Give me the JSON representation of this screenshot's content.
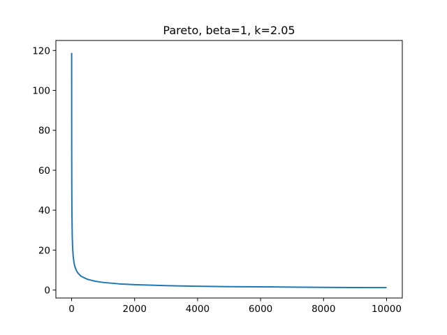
{
  "chart_data": {
    "type": "line",
    "title": "Pareto, beta=1, k=2.05",
    "xlabel": "",
    "ylabel": "",
    "xlim": [
      -500,
      10500
    ],
    "ylim": [
      -4,
      125
    ],
    "xticks": [
      0,
      2000,
      4000,
      6000,
      8000,
      10000
    ],
    "yticks": [
      0,
      20,
      40,
      60,
      80,
      100,
      120
    ],
    "grid": false,
    "legend": "none",
    "series": [
      {
        "color": "#1f77b4",
        "x": [
          1,
          2,
          3,
          5,
          10,
          20,
          30,
          50,
          75,
          100,
          150,
          200,
          300,
          500,
          750,
          1000,
          1500,
          2000,
          3000,
          4000,
          5000,
          6000,
          7000,
          8000,
          9000,
          10000
        ],
        "y": [
          118.8,
          84.2,
          68.8,
          53.3,
          37.7,
          26.7,
          21.8,
          16.9,
          13.8,
          11.9,
          9.8,
          8.5,
          6.9,
          5.4,
          4.4,
          3.8,
          3.1,
          2.7,
          2.2,
          1.9,
          1.7,
          1.6,
          1.45,
          1.35,
          1.25,
          1.2
        ]
      }
    ]
  }
}
